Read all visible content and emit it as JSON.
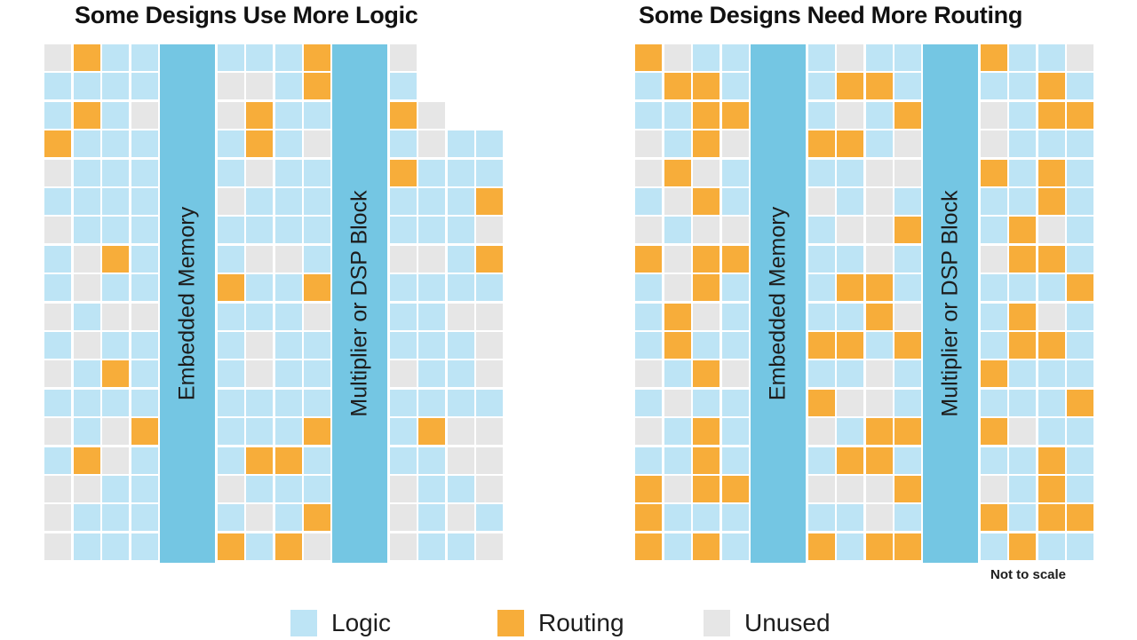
{
  "colors": {
    "logic": "#bde4f5",
    "routing": "#f7ad3a",
    "unused": "#e6e6e6",
    "block": "#74c6e3"
  },
  "left": {
    "title": "Some Designs Use More Logic",
    "memory_label": "Embedded Memory",
    "dsp_label": "Multiplier or DSP Block",
    "grid": [
      "UR.LL.L.L.L..RU",
      "L.L.L..LU.UL.RL",
      "L.RL.U.UR.LL.RU",
      "RLLL.LRLU.LULLL",
      "ULLL.LULL.RLLLL",
      "LLLL.ULLL.LLLRL",
      "ULLL.LLLL.LLLUL",
      "LURL.LUUL.UULRU",
      "LULL.RLLR.LLLLL",
      "ULUU.LLLU.LLUUR",
      "LULL.LULL.LLLUL",
      "ULRL.LULL.ULLUL",
      "LLLL.LLLL.LLLLL",
      "ULUR.LLLR.LRUUL",
      "LRUL.LRRL.LLUUR",
      "UULL.ULLL.ULLUL",
      "UL.L.LLUL.RULUL",
      "ULLL.RLRU.ULLUL"
    ]
  },
  "right": {
    "title": "Some Designs Need More Routing",
    "memory_label": "Embedded Memory",
    "dsp_label": "Multiplier or DSP Block",
    "grid": [
      "RULL.LULL.RLLU",
      "LRRL.LRRL.LLRL",
      "LLRR.LULR.ULRR",
      "ULRU.RRLU.ULLL",
      "URUL.LLUU.RLRL",
      "LURL.ULUL.LLRL",
      "ULUU.LUUR.LRUL",
      "RURR.LLUL.URRL",
      "LURL.LRRL.LLLR",
      "LRUL.LLRU.LRUL",
      "LRLL.RRLR.LRRL",
      "ULRU.LLUL.RLLL",
      "LULL.RUUL.LLLR",
      "ULRL.ULRR.RULL",
      "LLRL.LRRL.LLRL",
      "RURR.UUUR.ULRL",
      "RLLL.LLUL.RLRR",
      "RLRL.RLRR.LRLL"
    ]
  },
  "note": "Not to scale",
  "legend": [
    {
      "label": "Logic",
      "kind": "logic"
    },
    {
      "label": "Routing",
      "kind": "routing"
    },
    {
      "label": "Unused",
      "kind": "unused"
    }
  ]
}
